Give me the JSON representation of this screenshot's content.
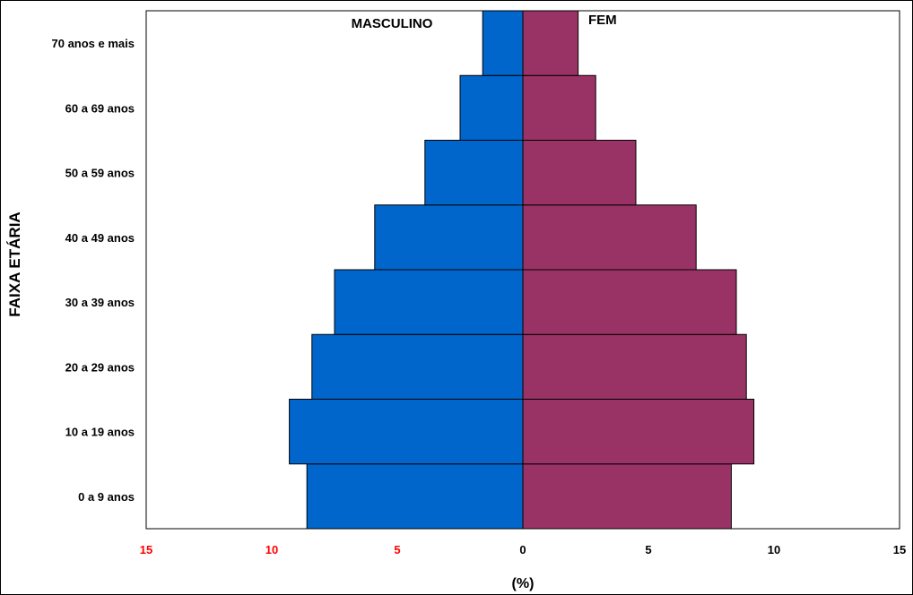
{
  "chart_data": {
    "type": "bar",
    "orientation": "horizontal",
    "layout": "population-pyramid",
    "categories": [
      "0 a 9 anos",
      "10 a 19 anos",
      "20 a 29 anos",
      "30 a 39 anos",
      "40 a 49 anos",
      "50 a 59 anos",
      "60 a 69 anos",
      "70 anos e mais"
    ],
    "series": [
      {
        "name": "MASCULINO",
        "side": "left",
        "color": "#0066cc",
        "values": [
          8.6,
          9.3,
          8.4,
          7.5,
          5.9,
          3.9,
          2.5,
          1.6
        ]
      },
      {
        "name": "FEM",
        "side": "right",
        "color": "#993366",
        "values": [
          8.3,
          9.2,
          8.9,
          8.5,
          6.9,
          4.5,
          2.9,
          2.2
        ]
      }
    ],
    "xlabel": "(%)",
    "ylabel": "FAIXA ETÁRIA",
    "xlim": [
      -15,
      15
    ],
    "xticks": [
      {
        "value": -15,
        "label": "15",
        "color": "#ff0000"
      },
      {
        "value": -10,
        "label": "10",
        "color": "#ff0000"
      },
      {
        "value": -5,
        "label": "5",
        "color": "#ff0000"
      },
      {
        "value": 0,
        "label": "0",
        "color": "#000000"
      },
      {
        "value": 5,
        "label": "5",
        "color": "#000000"
      },
      {
        "value": 10,
        "label": "10",
        "color": "#000000"
      },
      {
        "value": 15,
        "label": "15",
        "color": "#000000"
      }
    ],
    "grid": false,
    "legend": "none"
  }
}
